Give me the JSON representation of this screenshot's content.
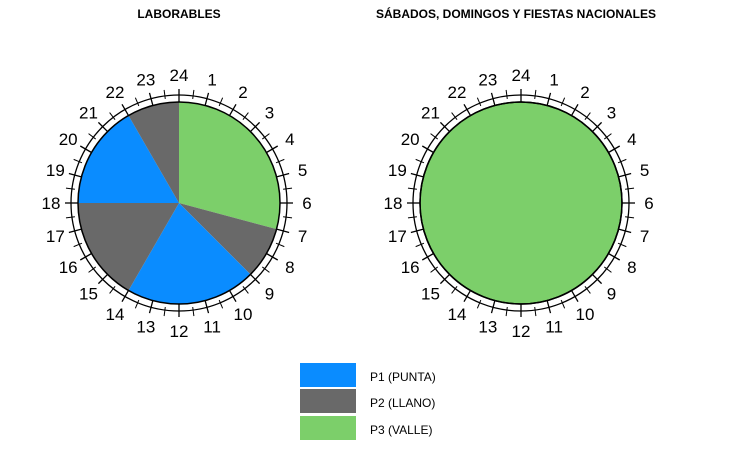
{
  "chart_data": [
    {
      "type": "pie",
      "title": "LABORABLES",
      "hour_labels": [
        "24",
        "1",
        "2",
        "3",
        "4",
        "5",
        "6",
        "7",
        "8",
        "9",
        "10",
        "11",
        "12",
        "13",
        "14",
        "15",
        "16",
        "17",
        "18",
        "19",
        "20",
        "21",
        "22",
        "23"
      ],
      "segments": [
        {
          "from_hour": 0,
          "to_hour": 7,
          "period": "P3"
        },
        {
          "from_hour": 7,
          "to_hour": 9,
          "period": "P2"
        },
        {
          "from_hour": 9,
          "to_hour": 14,
          "period": "P1"
        },
        {
          "from_hour": 14,
          "to_hour": 18,
          "period": "P2"
        },
        {
          "from_hour": 18,
          "to_hour": 22,
          "period": "P1"
        },
        {
          "from_hour": 22,
          "to_hour": 24,
          "period": "P2"
        }
      ]
    },
    {
      "type": "pie",
      "title": "SÁBADOS, DOMINGOS Y FIESTAS NACIONALES",
      "hour_labels": [
        "24",
        "1",
        "2",
        "3",
        "4",
        "5",
        "6",
        "7",
        "8",
        "9",
        "10",
        "11",
        "12",
        "13",
        "14",
        "15",
        "16",
        "17",
        "18",
        "19",
        "20",
        "21",
        "22",
        "23"
      ],
      "segments": [
        {
          "from_hour": 0,
          "to_hour": 24,
          "period": "P3"
        }
      ]
    }
  ],
  "legend": [
    {
      "key": "P1",
      "label": "P1 (PUNTA)",
      "color": "#0a8cff"
    },
    {
      "key": "P2",
      "label": "P2 (LLANO)",
      "color": "#696969"
    },
    {
      "key": "P3",
      "label": "P3 (VALLE)",
      "color": "#7ccf6a"
    }
  ]
}
